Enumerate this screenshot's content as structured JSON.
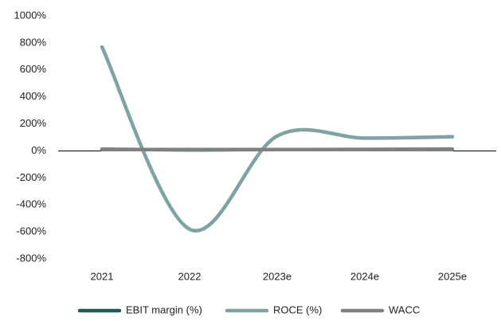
{
  "chart_data": {
    "type": "line",
    "categories": [
      "2021",
      "2022",
      "2023e",
      "2024e",
      "2025e"
    ],
    "series": [
      {
        "name": "EBIT margin (%)",
        "color": "#1f5c57",
        "values": [
          12,
          8,
          10,
          11,
          12
        ]
      },
      {
        "name": "ROCE (%)",
        "color": "#7fa3a3",
        "values": [
          770,
          -580,
          110,
          95,
          105
        ]
      },
      {
        "name": "WACC",
        "color": "#808080",
        "values": [
          10,
          10,
          10,
          10,
          10
        ]
      }
    ],
    "ylim": [
      -800,
      1000
    ],
    "yticks": [
      {
        "value": -800,
        "label": "-800%"
      },
      {
        "value": -600,
        "label": "-600%"
      },
      {
        "value": -400,
        "label": "-400%"
      },
      {
        "value": -200,
        "label": "-200%"
      },
      {
        "value": 0,
        "label": "0%"
      },
      {
        "value": 200,
        "label": "200%"
      },
      {
        "value": 400,
        "label": "400%"
      },
      {
        "value": 600,
        "label": "600%"
      },
      {
        "value": 800,
        "label": "800%"
      },
      {
        "value": 1000,
        "label": "1000%"
      }
    ],
    "smooth": true,
    "legend": "bottom"
  }
}
